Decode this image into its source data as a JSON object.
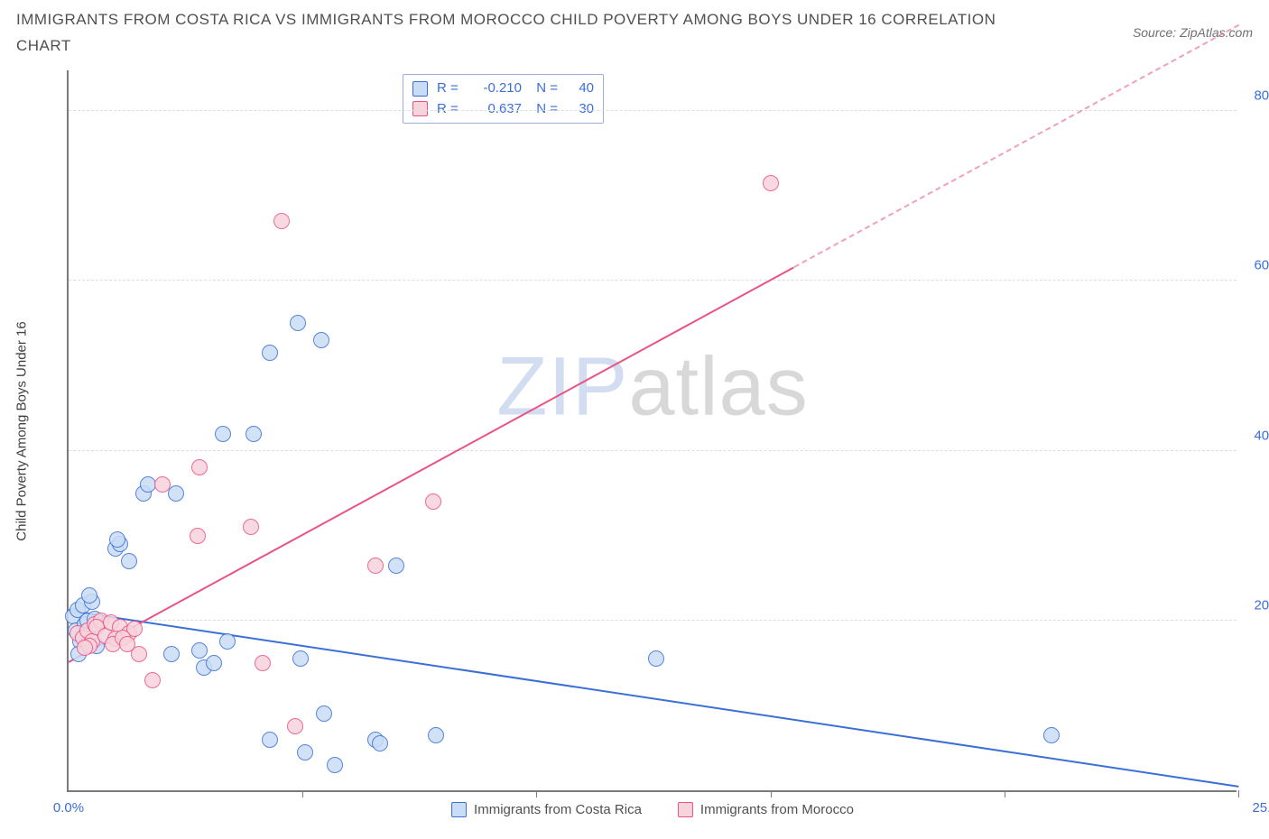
{
  "title": "IMMIGRANTS FROM COSTA RICA VS IMMIGRANTS FROM MOROCCO CHILD POVERTY AMONG BOYS UNDER 16 CORRELATION CHART",
  "source": "Source: ZipAtlas.com",
  "ylabel": "Child Poverty Among Boys Under 16",
  "watermark_a": "ZIP",
  "watermark_b": "atlas",
  "chart": {
    "type": "scatter",
    "background_color": "#ffffff",
    "grid_color": "#dddddd",
    "axis_color": "#7a7a7a",
    "tick_label_color": "#3b6fd6",
    "xlim": [
      0,
      25
    ],
    "ylim": [
      0,
      85
    ],
    "y_ticks": [
      20,
      40,
      60,
      80
    ],
    "y_tick_labels": [
      "20.0%",
      "40.0%",
      "60.0%",
      "80.0%"
    ],
    "x_ticks": [
      0,
      5,
      10,
      15,
      20,
      25
    ],
    "x_zero_label": "0.0%",
    "x_max_label": "25.0%",
    "series": [
      {
        "name": "Immigrants from Costa Rica",
        "color_fill": "#c9ddf6",
        "color_stroke": "#3b6fd6",
        "r": "-0.210",
        "n": "40",
        "trend": {
          "x1": 0,
          "y1": 21.0,
          "x2": 25,
          "y2": 0.3
        },
        "points": [
          [
            0.1,
            20.5
          ],
          [
            0.2,
            21.2
          ],
          [
            0.15,
            18.8
          ],
          [
            0.3,
            21.8
          ],
          [
            0.25,
            17.5
          ],
          [
            0.35,
            19.6
          ],
          [
            0.4,
            20.0
          ],
          [
            0.5,
            22.2
          ],
          [
            0.22,
            16.0
          ],
          [
            0.45,
            23.0
          ],
          [
            0.6,
            17.0
          ],
          [
            0.55,
            20.2
          ],
          [
            1.0,
            28.5
          ],
          [
            1.1,
            29.0
          ],
          [
            1.05,
            29.5
          ],
          [
            1.3,
            27.0
          ],
          [
            1.6,
            35.0
          ],
          [
            1.7,
            36.0
          ],
          [
            2.3,
            35.0
          ],
          [
            2.9,
            14.5
          ],
          [
            3.1,
            15.0
          ],
          [
            3.3,
            42.0
          ],
          [
            3.95,
            42.0
          ],
          [
            4.3,
            6.0
          ],
          [
            4.3,
            51.5
          ],
          [
            4.9,
            55.0
          ],
          [
            4.95,
            15.5
          ],
          [
            5.05,
            4.5
          ],
          [
            5.4,
            53.0
          ],
          [
            5.45,
            9.0
          ],
          [
            5.7,
            3.0
          ],
          [
            6.55,
            6.0
          ],
          [
            6.65,
            5.5
          ],
          [
            7.0,
            26.5
          ],
          [
            7.85,
            6.5
          ],
          [
            12.55,
            15.5
          ],
          [
            21.0,
            6.5
          ],
          [
            2.8,
            16.5
          ],
          [
            2.2,
            16.0
          ],
          [
            3.4,
            17.5
          ]
        ]
      },
      {
        "name": "Immigrants from Morocco",
        "color_fill": "#f7d3dc",
        "color_stroke": "#e95383",
        "r": "0.637",
        "n": "30",
        "trend": {
          "x1": 0,
          "y1": 15.0,
          "x2": 25,
          "y2": 90.0
        },
        "trend_visible_x_max": 15.5,
        "points": [
          [
            0.2,
            18.5
          ],
          [
            0.3,
            18.0
          ],
          [
            0.4,
            18.8
          ],
          [
            0.5,
            17.5
          ],
          [
            0.55,
            19.5
          ],
          [
            0.7,
            20.0
          ],
          [
            0.45,
            17.0
          ],
          [
            0.6,
            19.2
          ],
          [
            0.8,
            18.2
          ],
          [
            0.35,
            16.8
          ],
          [
            0.9,
            19.8
          ],
          [
            1.1,
            19.2
          ],
          [
            1.0,
            17.8
          ],
          [
            1.3,
            18.5
          ],
          [
            1.4,
            19.0
          ],
          [
            1.8,
            13.0
          ],
          [
            2.0,
            36.0
          ],
          [
            2.75,
            30.0
          ],
          [
            2.8,
            38.0
          ],
          [
            3.9,
            31.0
          ],
          [
            4.15,
            15.0
          ],
          [
            4.85,
            7.5
          ],
          [
            4.55,
            67.0
          ],
          [
            6.55,
            26.5
          ],
          [
            7.8,
            34.0
          ],
          [
            15.0,
            71.5
          ],
          [
            1.5,
            16.0
          ],
          [
            0.95,
            17.2
          ],
          [
            1.15,
            18.0
          ],
          [
            1.25,
            17.2
          ]
        ]
      }
    ],
    "legend_labels": {
      "r": "R =",
      "n": "N ="
    }
  }
}
